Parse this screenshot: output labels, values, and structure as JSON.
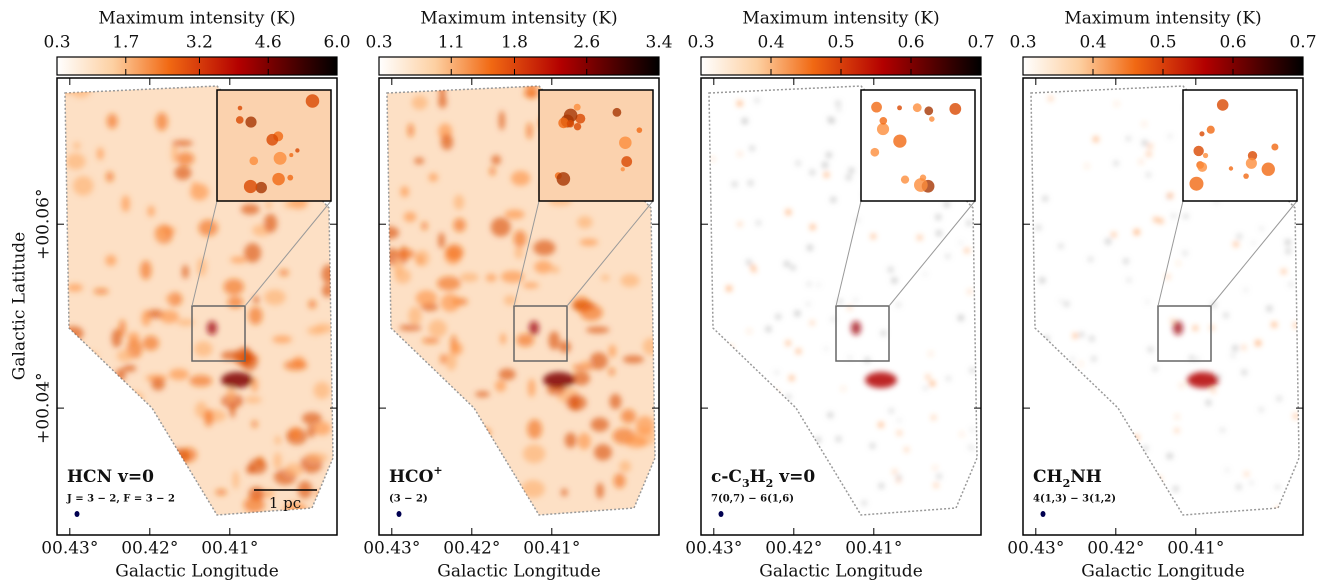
{
  "colorbar_label": "Maximum intensity (K)",
  "x_axis_label": "Galactic Longitude",
  "y_axis_label": "Galactic Latitude",
  "xaxis": {
    "xlim": [
      0.4316,
      0.3966
    ],
    "xticks": [
      {
        "value": 0.43,
        "label": "00.43°"
      },
      {
        "value": 0.42,
        "label": "00.42°"
      },
      {
        "value": 0.41,
        "label": "00.41°"
      }
    ]
  },
  "yaxis": {
    "ylim": [
      0.0262,
      0.0759
    ],
    "yticks": [
      {
        "value": 0.04,
        "label": "+00.04°"
      },
      {
        "value": 0.06,
        "label": "+00.06°"
      }
    ]
  },
  "scalebar": "1 pc",
  "panels": [
    {
      "colorbar": {
        "lim": [
          0.3,
          6
        ],
        "ticks": [
          0.3,
          1.7,
          3.2,
          4.6,
          {
            "value": 6,
            "label": "6.0"
          }
        ]
      },
      "molecule": [
        {
          "text": "HCN v=0"
        }
      ],
      "transition": "J = 3 − 2, F = 3 − 2"
    },
    {
      "colorbar": {
        "lim": [
          0.3,
          3.4
        ],
        "ticks": [
          0.3,
          1.1,
          1.8,
          2.6,
          3.4
        ]
      },
      "molecule": [
        {
          "text": "HCO"
        },
        {
          "text": "+",
          "shift": "super"
        }
      ],
      "transition": "(3 − 2)"
    },
    {
      "colorbar": {
        "lim": [
          0.3,
          0.7
        ],
        "ticks": [
          0.3,
          0.4,
          0.5,
          0.6,
          0.7
        ]
      },
      "molecule": [
        {
          "text": "c-C"
        },
        {
          "text": "3",
          "shift": "sub"
        },
        {
          "text": "H"
        },
        {
          "text": "2",
          "shift": "sub"
        },
        {
          "text": " v=0"
        }
      ],
      "transition": "7(0,7) − 6(1,6)"
    },
    {
      "colorbar": {
        "lim": [
          0.3,
          0.7
        ],
        "ticks": [
          0.3,
          0.4,
          0.5,
          0.6,
          0.7
        ]
      },
      "molecule": [
        {
          "text": "CH"
        },
        {
          "text": "2",
          "shift": "sub"
        },
        {
          "text": "NH"
        }
      ],
      "transition": "4(1,3) − 3(1,2)"
    }
  ]
}
